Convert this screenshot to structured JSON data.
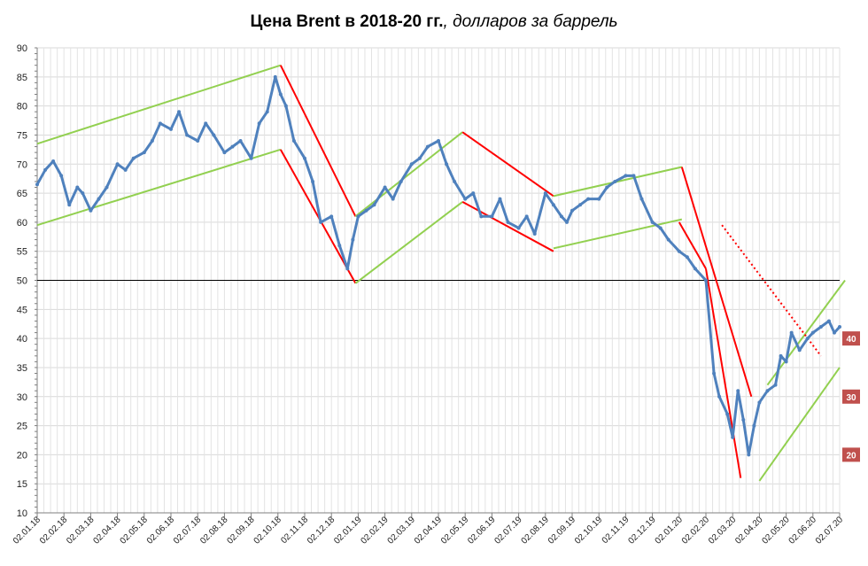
{
  "title_bold": "Цена Brent в 2018-20 гг.",
  "title_italic": ", долларов за баррель",
  "chart_data": {
    "type": "line",
    "title": "Цена Brent в 2018-20 гг., долларов за баррель",
    "ylim": [
      10,
      90
    ],
    "y_ticks": [
      10,
      15,
      20,
      25,
      30,
      35,
      40,
      45,
      50,
      55,
      60,
      65,
      70,
      75,
      80,
      85,
      90
    ],
    "x_tick_labels": [
      "02.01.18",
      "02.02.18",
      "02.03.18",
      "02.04.18",
      "02.05.18",
      "02.06.18",
      "02.07.18",
      "02.08.18",
      "02.09.18",
      "02.10.18",
      "02.11.18",
      "02.12.18",
      "02.01.19",
      "02.02.19",
      "02.03.19",
      "02.04.19",
      "02.05.19",
      "02.06.19",
      "02.07.19",
      "02.08.19",
      "02.09.19",
      "02.10.19",
      "02.11.19",
      "02.12.19",
      "02.01.20",
      "02.02.20",
      "02.03.20",
      "02.04.20",
      "02.05.20",
      "02.06.20",
      "02.07.20"
    ],
    "grid": true,
    "reference_line": 50,
    "series": [
      {
        "color": "#4f81bd",
        "x": [
          0,
          0.3,
          0.6,
          0.9,
          1.2,
          1.5,
          1.7,
          2.0,
          2.3,
          2.6,
          3.0,
          3.3,
          3.6,
          4.0,
          4.3,
          4.6,
          5.0,
          5.3,
          5.6,
          6.0,
          6.3,
          6.6,
          7.0,
          7.3,
          7.6,
          8.0,
          8.3,
          8.6,
          8.9,
          9.1,
          9.3,
          9.6,
          10.0,
          10.3,
          10.6,
          11.0,
          11.3,
          11.6,
          11.8,
          12.0,
          12.3,
          12.6,
          13.0,
          13.3,
          13.6,
          14.0,
          14.3,
          14.6,
          15.0,
          15.3,
          15.6,
          16.0,
          16.3,
          16.6,
          17.0,
          17.3,
          17.6,
          18.0,
          18.3,
          18.6,
          19.0,
          19.3,
          19.6,
          19.8,
          20.0,
          20.3,
          20.6,
          21.0,
          21.3,
          21.6,
          22.0,
          22.3,
          22.6,
          23.0,
          23.3,
          23.6,
          24.0,
          24.3,
          24.6,
          25.0,
          25.3,
          25.5,
          25.8,
          26.0,
          26.2,
          26.4,
          26.6,
          26.8,
          27.0,
          27.3,
          27.6,
          27.8,
          28.0,
          28.2,
          28.5,
          28.8,
          29.0,
          29.3,
          29.6,
          29.8,
          30.0
        ],
        "values": [
          66.5,
          69,
          70.5,
          68,
          63,
          66,
          65,
          62,
          64,
          66,
          70,
          69,
          71,
          72,
          74,
          77,
          76,
          79,
          75,
          74,
          77,
          75,
          72,
          73,
          74,
          71,
          77,
          79,
          85,
          82,
          80,
          74,
          71,
          67,
          60,
          61,
          56,
          52,
          57,
          61,
          62,
          63,
          66,
          64,
          67,
          70,
          71,
          73,
          74,
          70,
          67,
          64,
          65,
          61,
          61,
          64,
          60,
          59,
          61,
          58,
          65,
          63,
          61,
          60,
          62,
          63,
          64,
          64,
          66,
          67,
          68,
          68,
          64,
          60,
          59,
          57,
          55,
          54,
          52,
          50,
          34,
          30,
          27,
          23,
          31,
          26,
          20,
          25,
          29,
          31,
          32,
          37,
          36,
          41,
          38,
          40,
          41,
          42,
          43,
          41,
          42
        ]
      }
    ],
    "annotations": [
      "40",
      "30",
      "20"
    ]
  }
}
